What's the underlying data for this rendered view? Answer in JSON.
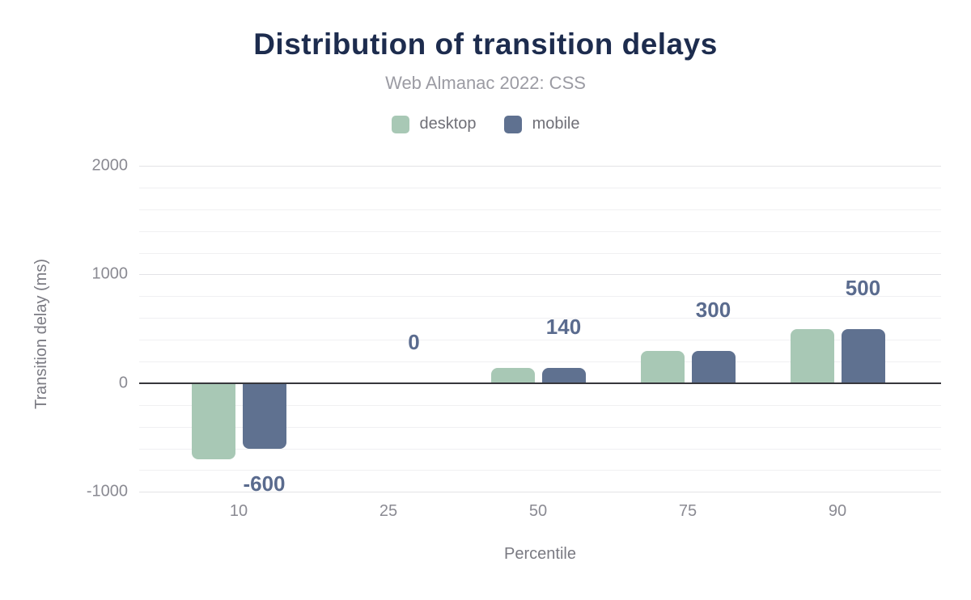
{
  "header": {
    "title": "Distribution of transition delays",
    "subtitle": "Web Almanac 2022: CSS"
  },
  "legend": {
    "items": [
      {
        "label": "desktop",
        "color": "#a8c8b5"
      },
      {
        "label": "mobile",
        "color": "#5f7190"
      }
    ]
  },
  "colors": {
    "title": "#1d2c4e",
    "subtitle": "#9b9ba3",
    "desktop": "#a8c8b5",
    "mobile": "#5f7190",
    "data_label": "#5a6b8e",
    "tick_label": "#8a8a92",
    "axis_title": "#7a7a82",
    "grid_major": "#e3e3e6",
    "grid_minor": "#f0f0f2",
    "zero_line": "#37373c",
    "background": "#ffffff"
  },
  "chart_data": {
    "type": "bar",
    "title": "Distribution of transition delays",
    "subtitle": "Web Almanac 2022: CSS",
    "xlabel": "Percentile",
    "ylabel": "Transition delay (ms)",
    "categories": [
      "10",
      "25",
      "50",
      "75",
      "90"
    ],
    "series": [
      {
        "name": "desktop",
        "color": "#a8c8b5",
        "values": [
          -700,
          0,
          140,
          300,
          500
        ]
      },
      {
        "name": "mobile",
        "color": "#5f7190",
        "values": [
          -600,
          0,
          140,
          300,
          500
        ]
      }
    ],
    "data_labels": [
      "-600",
      "0",
      "140",
      "300",
      "500"
    ],
    "data_label_series": "mobile",
    "units": "ms",
    "ylim": [
      -1050,
      2000
    ],
    "yticks": [
      -1000,
      0,
      1000,
      2000
    ],
    "minor_grid_step": 200,
    "grid": true,
    "legend_position": "top",
    "zero_line": true
  }
}
